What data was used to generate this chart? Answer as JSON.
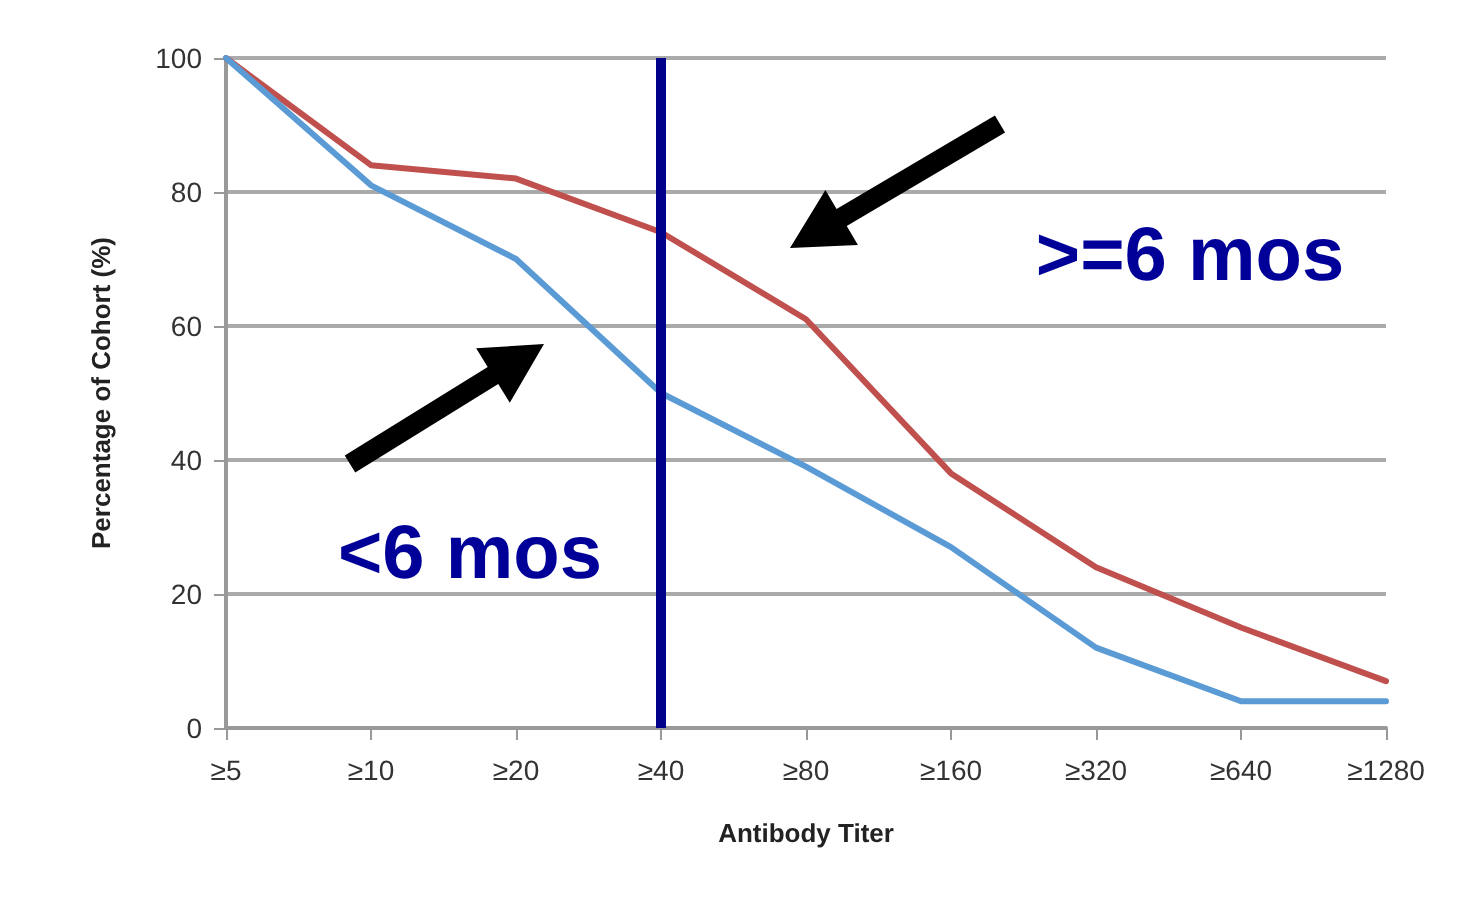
{
  "chart_data": {
    "type": "line",
    "xlabel": "Antibody Titer",
    "ylabel": "Percentage of Cohort (%)",
    "categories": [
      "≥5",
      "≥10",
      "≥20",
      "≥40",
      "≥80",
      "≥160",
      "≥320",
      "≥640",
      "≥1280"
    ],
    "series": [
      {
        "color": "#c0504d",
        "values": [
          100,
          84,
          82,
          74,
          61,
          38,
          24,
          15,
          7
        ]
      },
      {
        "color": "#5b9bd5",
        "values": [
          100,
          81,
          70,
          50,
          39,
          27,
          12,
          4,
          4
        ]
      }
    ],
    "ylim": [
      0,
      100
    ],
    "yticks": [
      0,
      20,
      40,
      60,
      80,
      100
    ],
    "grid": "y",
    "marker": "none",
    "line_style": "solid",
    "ref_lines": [
      {
        "axis": "x",
        "value": "≥40",
        "color": "#00008b"
      }
    ],
    "annotations": [
      "<6 mos",
      ">=6 mos"
    ]
  }
}
